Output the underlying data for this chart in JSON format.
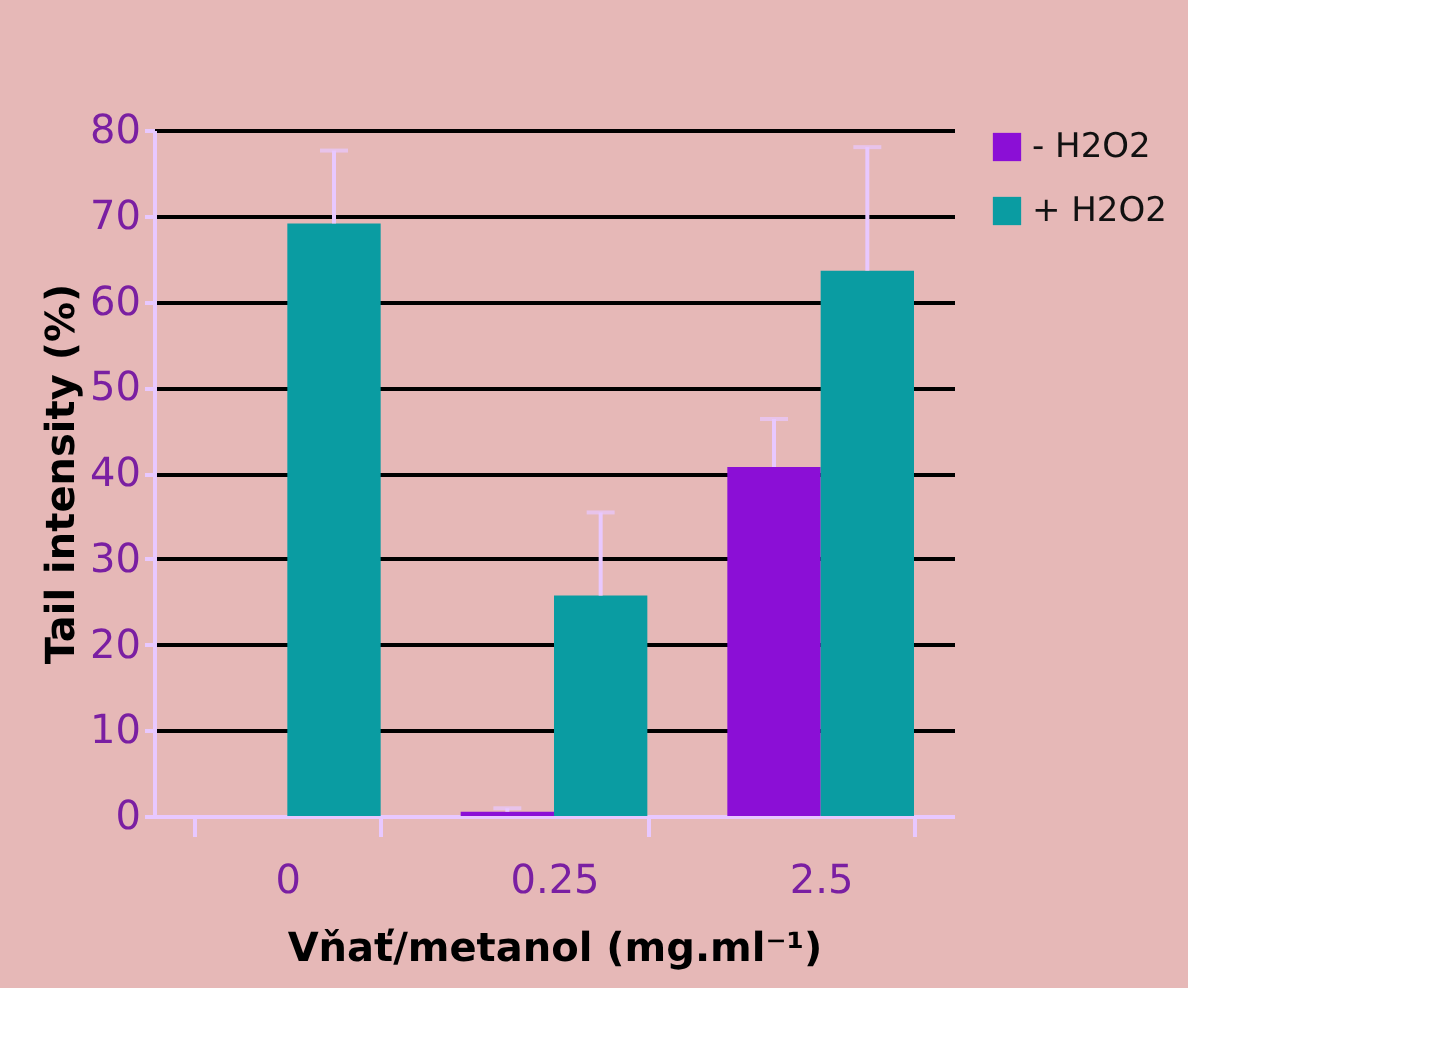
{
  "chart_data": {
    "type": "bar",
    "xlabel": "Vňať/metanol (mg.ml⁻¹)",
    "ylabel": "Tail intensity (%)",
    "categories": [
      "0",
      "0.25",
      "2.5"
    ],
    "series": [
      {
        "name": "- H2O2",
        "color": "#8b0fd6",
        "values": [
          null,
          0.5,
          40.7
        ],
        "errors": [
          null,
          [
            0.5,
            0.9
          ],
          [
            40.7,
            46.3
          ]
        ]
      },
      {
        "name": "+ H2O2",
        "color": "#0a9ca2",
        "values": [
          69.1,
          25.7,
          63.6
        ],
        "errors": [
          [
            69.1,
            77.6
          ],
          [
            25.7,
            35.4
          ],
          [
            63.6,
            78.0
          ]
        ]
      }
    ],
    "ylim": [
      0,
      80
    ],
    "yticks": [
      0,
      10,
      20,
      30,
      40,
      50,
      60,
      70,
      80
    ],
    "grid": "y",
    "legend": "right"
  }
}
